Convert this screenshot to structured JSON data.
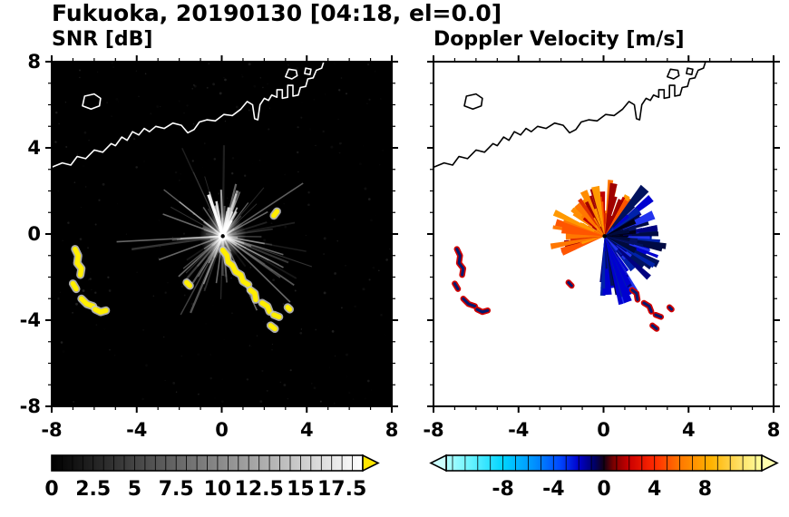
{
  "title": "Fukuoka, 20190130 [04:18, el=0.0]",
  "panels": {
    "left": {
      "title": "SNR [dB]"
    },
    "right": {
      "title": "Doppler Velocity [m/s]"
    }
  },
  "axis": {
    "xlim": [
      -8,
      8
    ],
    "ylim": [
      -8,
      8
    ],
    "xtick_values": [
      -8,
      -4,
      0,
      4,
      8
    ],
    "xtick_labels": [
      "-8",
      "-4",
      "0",
      "4",
      "8"
    ],
    "ytick_values": [
      8,
      4,
      0,
      -4,
      -8
    ],
    "ytick_labels": [
      "8",
      "4",
      "0",
      "-4",
      "-8"
    ]
  },
  "coastline": {
    "region": "Fukuoka coast, Japan",
    "coast": [
      [
        -8,
        3.1
      ],
      [
        -7.5,
        3.3
      ],
      [
        -7.1,
        3.2
      ],
      [
        -6.8,
        3.6
      ],
      [
        -6.4,
        3.5
      ],
      [
        -6,
        3.9
      ],
      [
        -5.6,
        3.8
      ],
      [
        -5.2,
        4.2
      ],
      [
        -5,
        4.1
      ],
      [
        -4.7,
        4.5
      ],
      [
        -4.45,
        4.35
      ],
      [
        -4.2,
        4.75
      ],
      [
        -3.9,
        4.6
      ],
      [
        -3.65,
        4.9
      ],
      [
        -3.4,
        4.75
      ],
      [
        -3.1,
        5
      ],
      [
        -2.7,
        4.9
      ],
      [
        -2.3,
        5.15
      ],
      [
        -1.9,
        5.05
      ],
      [
        -1.6,
        4.7
      ],
      [
        -1.3,
        4.85
      ],
      [
        -1.05,
        5.2
      ],
      [
        -0.7,
        5.3
      ],
      [
        -0.3,
        5.25
      ],
      [
        0.1,
        5.55
      ],
      [
        0.5,
        5.5
      ],
      [
        0.9,
        5.8
      ],
      [
        1.2,
        6.15
      ],
      [
        1.45,
        6
      ],
      [
        1.55,
        5.35
      ],
      [
        1.7,
        5.3
      ],
      [
        1.8,
        6
      ],
      [
        2,
        6.3
      ],
      [
        2.2,
        6.2
      ],
      [
        2.35,
        6.45
      ],
      [
        2.6,
        6.35
      ],
      [
        2.6,
        6.7
      ],
      [
        2.85,
        6.7
      ],
      [
        2.85,
        6.3
      ],
      [
        3.1,
        6.35
      ],
      [
        3.1,
        6.9
      ],
      [
        3.35,
        6.9
      ],
      [
        3.35,
        6.4
      ],
      [
        3.6,
        6.45
      ],
      [
        3.7,
        6.8
      ],
      [
        3.95,
        6.85
      ],
      [
        4.05,
        7.2
      ],
      [
        4.3,
        7.25
      ],
      [
        4.45,
        7.6
      ],
      [
        4.7,
        7.7
      ],
      [
        4.8,
        8
      ]
    ],
    "islands": [
      [
        [
          -6.55,
          5.95
        ],
        [
          -6.15,
          5.8
        ],
        [
          -5.75,
          5.95
        ],
        [
          -5.7,
          6.3
        ],
        [
          -6,
          6.5
        ],
        [
          -6.45,
          6.4
        ]
      ],
      [
        [
          3,
          7.3
        ],
        [
          3.3,
          7.2
        ],
        [
          3.55,
          7.35
        ],
        [
          3.5,
          7.6
        ],
        [
          3.15,
          7.65
        ]
      ],
      [
        [
          3.9,
          7.45
        ],
        [
          4.15,
          7.4
        ],
        [
          4.2,
          7.65
        ],
        [
          3.95,
          7.7
        ]
      ]
    ]
  },
  "chart_data": [
    {
      "type": "heatmap",
      "panel": "snr",
      "title": "SNR [dB]",
      "units": "dB",
      "xlim": [
        -8,
        8
      ],
      "ylim": [
        -8,
        8
      ],
      "background": "#000000",
      "coast_color": "#ffffff",
      "radar_center": [
        0.05,
        -0.1
      ],
      "colorbar": {
        "range": [
          0,
          18.75
        ],
        "tick_values": [
          0,
          2.5,
          5,
          7.5,
          10,
          12.5,
          15,
          17.5
        ],
        "tick_labels": [
          "0",
          "2.5",
          "5",
          "7.5",
          "10",
          "12.5",
          "15",
          "17.5"
        ],
        "gradient": [
          [
            0,
            "#000000"
          ],
          [
            1,
            "#ffffff"
          ]
        ],
        "over_arrow_color": "#ffe600"
      },
      "streaks": {
        "count": 85,
        "bright_fan_deg": [
          55,
          110
        ],
        "long_spokes": [
          [
            183,
            5
          ],
          [
            200,
            3.2
          ],
          [
            222,
            2.8
          ],
          [
            248,
            2.4
          ],
          [
            262,
            2.2
          ],
          [
            295,
            3.8
          ],
          [
            316,
            4.4
          ],
          [
            333,
            3.2
          ],
          [
            28,
            2.4
          ],
          [
            142,
            2.6
          ],
          [
            160,
            3
          ],
          [
            350,
            2
          ]
        ]
      },
      "clutter_blobs": [
        [
          [
            -6.9,
            -0.7
          ],
          [
            -6.75,
            -1.0
          ],
          [
            -6.8,
            -1.35
          ],
          [
            -6.6,
            -1.6
          ],
          [
            -6.65,
            -1.9
          ]
        ],
        [
          [
            -7.0,
            -2.3
          ],
          [
            -6.85,
            -2.55
          ]
        ],
        [
          [
            -6.6,
            -3.0
          ],
          [
            -6.35,
            -3.25
          ],
          [
            -6.05,
            -3.35
          ]
        ],
        [
          [
            -5.95,
            -3.5
          ],
          [
            -5.7,
            -3.62
          ],
          [
            -5.45,
            -3.55
          ]
        ],
        [
          [
            0.05,
            -0.75
          ],
          [
            0.25,
            -1.0
          ],
          [
            0.3,
            -1.3
          ],
          [
            0.5,
            -1.45
          ],
          [
            0.65,
            -1.75
          ],
          [
            0.9,
            -1.9
          ],
          [
            1.0,
            -2.2
          ],
          [
            1.25,
            -2.35
          ]
        ],
        [
          [
            1.35,
            -2.6
          ],
          [
            1.55,
            -2.75
          ],
          [
            1.6,
            -3.05
          ]
        ],
        [
          [
            1.9,
            -3.2
          ],
          [
            2.15,
            -3.35
          ],
          [
            2.25,
            -3.6
          ]
        ],
        [
          [
            2.45,
            -3.75
          ],
          [
            2.7,
            -3.85
          ]
        ],
        [
          [
            2.3,
            -4.25
          ],
          [
            2.5,
            -4.4
          ]
        ],
        [
          [
            3.1,
            -3.4
          ],
          [
            3.2,
            -3.5
          ]
        ],
        [
          [
            2.45,
            0.85
          ],
          [
            2.6,
            1.05
          ]
        ],
        [
          [
            -1.65,
            -2.25
          ],
          [
            -1.5,
            -2.4
          ]
        ]
      ]
    },
    {
      "type": "heatmap",
      "panel": "velocity",
      "title": "Doppler Velocity [m/s]",
      "units": "m/s",
      "xlim": [
        -8,
        8
      ],
      "ylim": [
        -8,
        8
      ],
      "background": "#ffffff",
      "coast_color": "#000000",
      "radar_center": [
        0.05,
        -0.1
      ],
      "colorbar": {
        "range": [
          -12.5,
          12.5
        ],
        "tick_values": [
          -8,
          -4,
          0,
          4,
          8
        ],
        "tick_labels": [
          "-8",
          "-4",
          "0",
          "4",
          "8"
        ],
        "gradient": [
          [
            0,
            "#b3feff"
          ],
          [
            0.08,
            "#66f2ff"
          ],
          [
            0.18,
            "#00d4ff"
          ],
          [
            0.28,
            "#0090ff"
          ],
          [
            0.36,
            "#0048ff"
          ],
          [
            0.42,
            "#0000cc"
          ],
          [
            0.47,
            "#000066"
          ],
          [
            0.5,
            "#140014"
          ],
          [
            0.53,
            "#7a0000"
          ],
          [
            0.58,
            "#cc0000"
          ],
          [
            0.66,
            "#ff2a00"
          ],
          [
            0.74,
            "#ff7700"
          ],
          [
            0.84,
            "#ffb300"
          ],
          [
            0.93,
            "#ffe066"
          ],
          [
            1,
            "#ffff9e"
          ]
        ],
        "under_arrow_color": "#ccffff",
        "over_arrow_color": "#ffffae"
      },
      "echo": {
        "warm_sector_deg": [
          55,
          200
        ],
        "warm_colors": [
          "#ff7700",
          "#ff8c00",
          "#ff5500",
          "#e03000",
          "#c00000",
          "#ff9900",
          "#a00000"
        ],
        "cool_sector_deg": [
          -95,
          50
        ],
        "cool_colors": [
          "#0000d0",
          "#0022aa",
          "#000080",
          "#00125e",
          "#2233ee",
          "#000a44"
        ],
        "dark_clump_deg": [
          -25,
          30
        ],
        "max_range": 3.4
      },
      "fleck_blob_indices": [
        0,
        1,
        2,
        3,
        5,
        6,
        7,
        8,
        9,
        11
      ],
      "fleck_colors": {
        "outer": "#d00000",
        "inner": "#001a70"
      }
    }
  ]
}
